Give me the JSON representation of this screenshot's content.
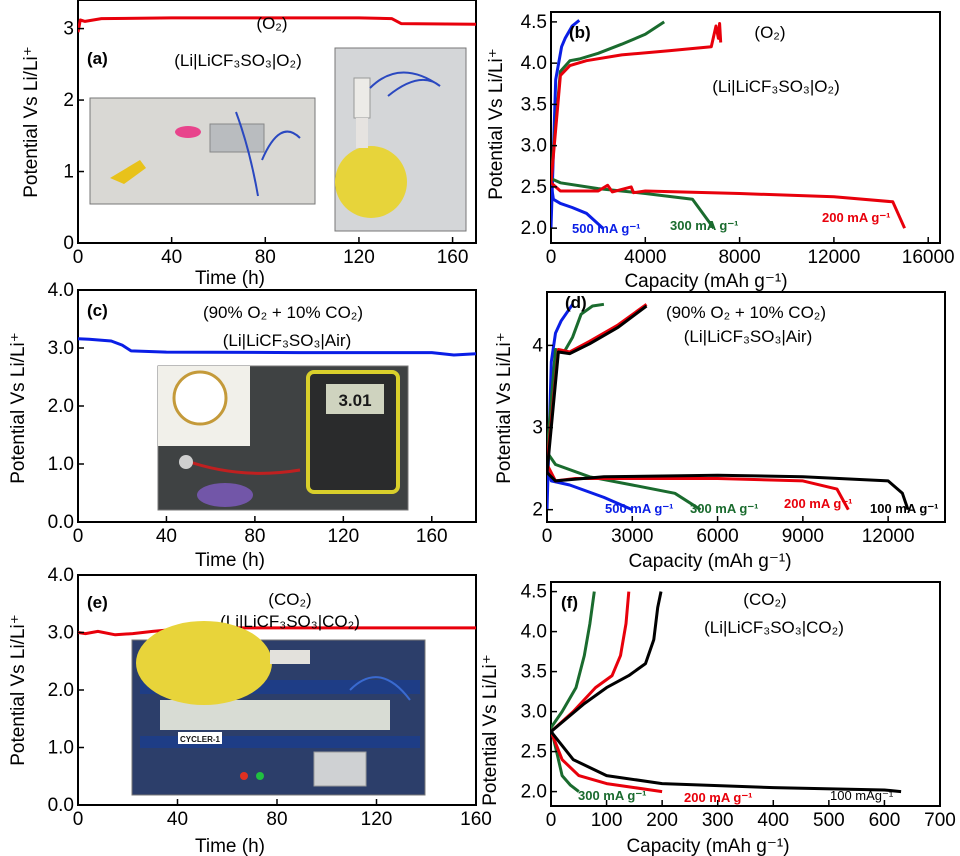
{
  "figure": {
    "panels": [
      {
        "id": "a",
        "label": "(a)",
        "title_lines": [
          "(O₂)",
          "(Li|LiCF₃SO₃|O₂)"
        ],
        "photos": 2
      },
      {
        "id": "b",
        "label": "(b)",
        "title_lines": [
          "(O₂)",
          "(Li|LiCF₃SO₃|O₂)"
        ]
      },
      {
        "id": "c",
        "label": "(c)",
        "title_lines": [
          "(90% O₂ + 10% CO₂)",
          "(Li|LiCF₃SO₃|Air)"
        ],
        "photos": 1,
        "multimeter_reading": "3.01"
      },
      {
        "id": "d",
        "label": "(d)",
        "title_lines": [
          "(90% O₂ + 10% CO₂)",
          "(Li|LiCF₃SO₃|Air)"
        ]
      },
      {
        "id": "e",
        "label": "(e)",
        "title_lines": [
          "(CO₂)",
          "(Li|LiCF₃SO₃|CO₂)"
        ],
        "photos": 1,
        "cycler_label": "CYCLER-1"
      },
      {
        "id": "f",
        "label": "(f)",
        "title_lines": [
          "(CO₂)",
          "(Li|LiCF₃SO₃|CO₂)"
        ]
      }
    ]
  },
  "chart_data": [
    {
      "panel": "a",
      "type": "line",
      "xlabel": "Time (h)",
      "ylabel": "Potential Vs Li/Li⁺",
      "xlim": [
        0,
        170
      ],
      "ylim": [
        0,
        3.4
      ],
      "xticks": [
        0,
        40,
        80,
        120,
        160
      ],
      "yticks": [
        0,
        1,
        2,
        3
      ],
      "ytick_labels": [
        "0",
        "1",
        "2",
        "3"
      ],
      "series": [
        {
          "color": "#e8000b",
          "x": [
            0,
            1,
            3,
            10,
            40,
            80,
            120,
            134,
            138,
            170
          ],
          "y": [
            2.95,
            3.12,
            3.1,
            3.14,
            3.15,
            3.15,
            3.15,
            3.14,
            3.07,
            3.06
          ]
        }
      ]
    },
    {
      "panel": "b",
      "type": "line",
      "xlabel": "Capacity (mAh g⁻¹)",
      "ylabel": "Potential Vs Li/Li⁺",
      "xlim": [
        0,
        16500
      ],
      "ylim": [
        1.82,
        4.62
      ],
      "xticks": [
        0,
        4000,
        8000,
        12000,
        16000
      ],
      "yticks": [
        2.0,
        2.5,
        3.0,
        3.5,
        4.0,
        4.5
      ],
      "ytick_labels": [
        "2.0",
        "2.5",
        "3.0",
        "3.5",
        "4.0",
        "4.5"
      ],
      "series": [
        {
          "name": "500 mA g⁻¹",
          "color": "#0a1ee6",
          "discharge": {
            "x": [
              0,
              100,
              400,
              900,
              1500,
              2200
            ],
            "y": [
              2.55,
              2.35,
              2.3,
              2.25,
              2.18,
              2.0
            ]
          },
          "charge": {
            "x": [
              0,
              200,
              450,
              600,
              900,
              1200
            ],
            "y": [
              2.0,
              3.8,
              4.2,
              4.3,
              4.45,
              4.52
            ]
          }
        },
        {
          "name": "300 mA g⁻¹",
          "color": "#1a6b2e",
          "discharge": {
            "x": [
              0,
              400,
              2000,
              4000,
              6000,
              6900
            ],
            "y": [
              2.6,
              2.55,
              2.48,
              2.42,
              2.35,
              2.0
            ]
          },
          "charge": {
            "x": [
              0,
              400,
              800,
              1200,
              2000,
              3000,
              4000,
              4800
            ],
            "y": [
              2.6,
              3.9,
              4.03,
              4.05,
              4.12,
              4.23,
              4.35,
              4.5
            ]
          }
        },
        {
          "name": "200 mA g⁻¹",
          "color": "#e8000b",
          "discharge": {
            "x": [
              0,
              400,
              2000,
              2400,
              2600,
              3400,
              3500,
              4000,
              8000,
              12000,
              14500,
              15000
            ],
            "y": [
              2.55,
              2.45,
              2.45,
              2.52,
              2.44,
              2.5,
              2.43,
              2.45,
              2.42,
              2.38,
              2.32,
              2.0
            ]
          },
          "charge": {
            "x": [
              0,
              400,
              800,
              1500,
              3000,
              5000,
              6800,
              7000,
              7100,
              7150,
              7200
            ],
            "y": [
              2.55,
              3.85,
              3.97,
              4.03,
              4.1,
              4.15,
              4.2,
              4.45,
              4.3,
              4.48,
              4.25
            ]
          }
        }
      ]
    },
    {
      "panel": "c",
      "type": "line",
      "xlabel": "Time (h)",
      "ylabel": "Potential Vs Li/Li⁺",
      "xlim": [
        0,
        180
      ],
      "ylim": [
        0,
        4.0
      ],
      "xticks": [
        0,
        40,
        80,
        120,
        160
      ],
      "yticks": [
        0,
        1,
        2,
        3,
        4
      ],
      "ytick_labels": [
        "0.0",
        "1.0",
        "2.0",
        "3.0",
        "4.0"
      ],
      "series": [
        {
          "color": "#0a1ee6",
          "x": [
            0,
            5,
            15,
            20,
            24,
            40,
            100,
            160,
            170,
            180
          ],
          "y": [
            3.16,
            3.15,
            3.12,
            3.05,
            2.95,
            2.93,
            2.92,
            2.92,
            2.88,
            2.9
          ]
        }
      ]
    },
    {
      "panel": "d",
      "type": "line",
      "xlabel": "Capacity (mAh g⁻¹)",
      "ylabel": "Potential Vs Li/Li⁺",
      "xlim": [
        0,
        14000
      ],
      "ylim": [
        1.85,
        4.65
      ],
      "xticks": [
        0,
        3000,
        6000,
        9000,
        12000
      ],
      "yticks": [
        2,
        3,
        4
      ],
      "ytick_labels": [
        "2",
        "3",
        "4"
      ],
      "series": [
        {
          "name": "500 mA g⁻¹",
          "color": "#0a1ee6",
          "discharge": {
            "x": [
              0,
              150,
              800,
              2000,
              3000
            ],
            "y": [
              2.55,
              2.35,
              2.3,
              2.15,
              2.0
            ]
          },
          "charge": {
            "x": [
              0,
              150,
              300,
              500,
              900
            ],
            "y": [
              2.0,
              3.8,
              4.15,
              4.3,
              4.5
            ]
          }
        },
        {
          "name": "300 mA g⁻¹",
          "color": "#1a6b2e",
          "discharge": {
            "x": [
              0,
              300,
              1500,
              3000,
              4500,
              5400
            ],
            "y": [
              2.7,
              2.55,
              2.4,
              2.3,
              2.2,
              2.0
            ]
          },
          "charge": {
            "x": [
              0,
              300,
              600,
              900,
              1200,
              1600,
              2000
            ],
            "y": [
              2.7,
              3.95,
              3.92,
              4.1,
              4.38,
              4.48,
              4.5
            ]
          }
        },
        {
          "name": "200 mA g⁻¹",
          "color": "#e8000b",
          "discharge": {
            "x": [
              0,
              300,
              1000,
              3000,
              6000,
              9000,
              10200,
              10600
            ],
            "y": [
              2.55,
              2.35,
              2.38,
              2.38,
              2.38,
              2.35,
              2.25,
              2.0
            ]
          },
          "charge": {
            "x": [
              0,
              400,
              800,
              1500,
              2500,
              3500
            ],
            "y": [
              2.55,
              3.95,
              3.92,
              4.05,
              4.25,
              4.5
            ]
          }
        },
        {
          "name": "100 mA g⁻¹",
          "color": "#000000",
          "discharge": {
            "x": [
              0,
              300,
              2000,
              6000,
              9000,
              12000,
              12500,
              12700
            ],
            "y": [
              2.45,
              2.35,
              2.4,
              2.42,
              2.4,
              2.35,
              2.2,
              2.0
            ]
          },
          "charge": {
            "x": [
              0,
              400,
              800,
              1500,
              2500,
              3500
            ],
            "y": [
              2.45,
              3.92,
              3.9,
              4.02,
              4.22,
              4.48
            ]
          }
        }
      ]
    },
    {
      "panel": "e",
      "type": "line",
      "xlabel": "Time (h)",
      "ylabel": "Potential Vs Li/Li⁺",
      "xlim": [
        0,
        160
      ],
      "ylim": [
        0,
        4.0
      ],
      "xticks": [
        0,
        40,
        80,
        120,
        160
      ],
      "yticks": [
        0,
        1,
        2,
        3,
        4
      ],
      "ytick_labels": [
        "0.0",
        "1.0",
        "2.0",
        "3.0",
        "4.0"
      ],
      "series": [
        {
          "color": "#e8000b",
          "x": [
            0,
            3,
            8,
            15,
            22,
            30,
            35,
            45,
            80,
            120,
            160
          ],
          "y": [
            3.0,
            2.98,
            3.02,
            2.96,
            2.98,
            3.02,
            3.04,
            3.08,
            3.08,
            3.08,
            3.08
          ]
        }
      ]
    },
    {
      "panel": "f",
      "type": "line",
      "xlabel": "Capacity (mAh g⁻¹)",
      "ylabel": "Potential Vs Li/Li⁺",
      "xlim": [
        0,
        700
      ],
      "ylim": [
        1.82,
        4.62
      ],
      "xticks": [
        0,
        100,
        200,
        300,
        400,
        500,
        600,
        700
      ],
      "yticks": [
        2.0,
        2.5,
        3.0,
        3.5,
        4.0,
        4.5
      ],
      "ytick_labels": [
        "2.0",
        "2.5",
        "3.0",
        "3.5",
        "4.0",
        "4.5"
      ],
      "series": [
        {
          "name": "300 mA g⁻¹",
          "color": "#1a6b2e",
          "discharge": {
            "x": [
              0,
              10,
              20,
              35,
              50
            ],
            "y": [
              2.8,
              2.5,
              2.2,
              2.08,
              2.0
            ]
          },
          "charge": {
            "x": [
              0,
              20,
              45,
              60,
              70,
              78
            ],
            "y": [
              2.8,
              3.0,
              3.3,
              3.7,
              4.1,
              4.5
            ]
          }
        },
        {
          "name": "200 mA g⁻¹",
          "color": "#e8000b",
          "discharge": {
            "x": [
              0,
              20,
              50,
              100,
              150,
              200
            ],
            "y": [
              2.75,
              2.4,
              2.2,
              2.1,
              2.05,
              2.0
            ]
          },
          "charge": {
            "x": [
              0,
              40,
              80,
              110,
              125,
              135,
              140
            ],
            "y": [
              2.75,
              3.0,
              3.3,
              3.45,
              3.7,
              4.1,
              4.5
            ]
          }
        },
        {
          "name": "100 mAg⁻¹",
          "color": "#000000",
          "discharge": {
            "x": [
              0,
              40,
              100,
              200,
              400,
              600,
              630
            ],
            "y": [
              2.75,
              2.4,
              2.2,
              2.1,
              2.05,
              2.02,
              2.0
            ]
          },
          "charge": {
            "x": [
              0,
              60,
              100,
              140,
              170,
              185,
              192,
              198
            ],
            "y": [
              2.75,
              3.1,
              3.3,
              3.45,
              3.6,
              3.9,
              4.3,
              4.5
            ]
          }
        }
      ]
    }
  ]
}
